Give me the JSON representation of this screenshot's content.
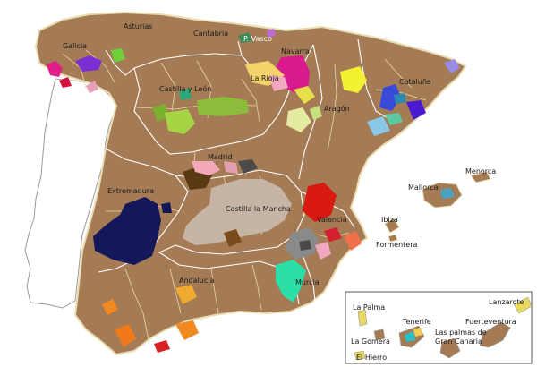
{
  "map": {
    "colors": {
      "sea": "#ffffff",
      "spain": "#a57b55",
      "portugal": "#ffffff",
      "border": "#e8ddb0"
    },
    "labels": {
      "asturias": "Asturias",
      "cantabria": "Cantabria",
      "p_vasco": "P. Vasco",
      "galicia": "Galicia",
      "navarra": "Navarra",
      "la_rioja": "La Rioja",
      "cataluna": "Cataluña",
      "castilla_leon": "Castilla y León",
      "aragon": "Aragón",
      "madrid": "Madrid",
      "extremadura": "Extremadura",
      "castilla_mancha": "Castilla la Mancha",
      "valencia": "Valencia",
      "menorca": "Menorca",
      "mallorca": "Mallorca",
      "ibiza": "Ibiza",
      "formentera": "Formentera",
      "andalucia": "Andalucía",
      "murcia": "Murcia",
      "la_palma": "La Palma",
      "tenerife": "Tenerife",
      "la_gomera": "La Gomera",
      "el_hierro": "El Hierro",
      "las_palmas": "Las palmas de",
      "gran_canaria": "Gran Canaria",
      "lanzarote": "Lanzarote",
      "fuerteventura": "Fuerteventura"
    }
  }
}
